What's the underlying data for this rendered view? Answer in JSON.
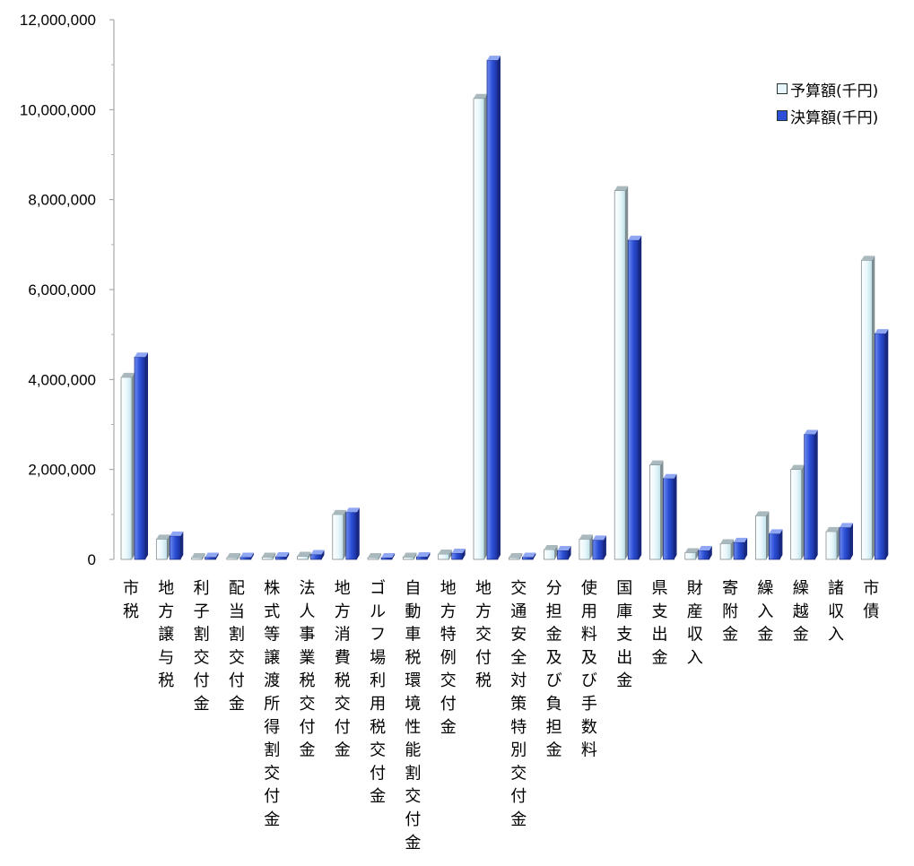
{
  "chart_data": {
    "type": "bar",
    "title": "",
    "xlabel": "",
    "ylabel": "",
    "ylim": [
      0,
      12000000
    ],
    "yticks": [
      0,
      2000000,
      4000000,
      6000000,
      8000000,
      10000000,
      12000000
    ],
    "ytick_labels": [
      "0",
      "2,000,000",
      "4,000,000",
      "6,000,000",
      "8,000,000",
      "10,000,000",
      "12,000,000"
    ],
    "grid": false,
    "legend_position": "top-right",
    "categories": [
      "市税",
      "地方譲与税",
      "利子割交付金",
      "配当割交付金",
      "株式等譲渡所得割交付金",
      "法人事業税交付金",
      "地方消費税交付金",
      "ゴルフ場利用税交付金",
      "自動車税環境性能割交付金",
      "地方特例交付金",
      "地方交付税",
      "交通安全対策特別交付金",
      "分担金及び負担金",
      "使用料及び手数料",
      "国庫支出金",
      "県支出金",
      "財産収入",
      "寄附金",
      "繰入金",
      "繰越金",
      "諸収入",
      "市債"
    ],
    "series": [
      {
        "name": "予算額(千円)",
        "color": "#e6f6fa",
        "values": [
          4050000,
          450000,
          40000,
          40000,
          50000,
          70000,
          1000000,
          40000,
          50000,
          120000,
          10250000,
          40000,
          220000,
          450000,
          8200000,
          2100000,
          150000,
          350000,
          970000,
          2000000,
          620000,
          6650000
        ]
      },
      {
        "name": "決算額(千円)",
        "color": "#2e50d8",
        "values": [
          4500000,
          520000,
          50000,
          50000,
          60000,
          110000,
          1050000,
          40000,
          60000,
          140000,
          11100000,
          50000,
          200000,
          430000,
          7100000,
          1800000,
          200000,
          380000,
          570000,
          2780000,
          710000,
          5020000
        ]
      }
    ]
  }
}
